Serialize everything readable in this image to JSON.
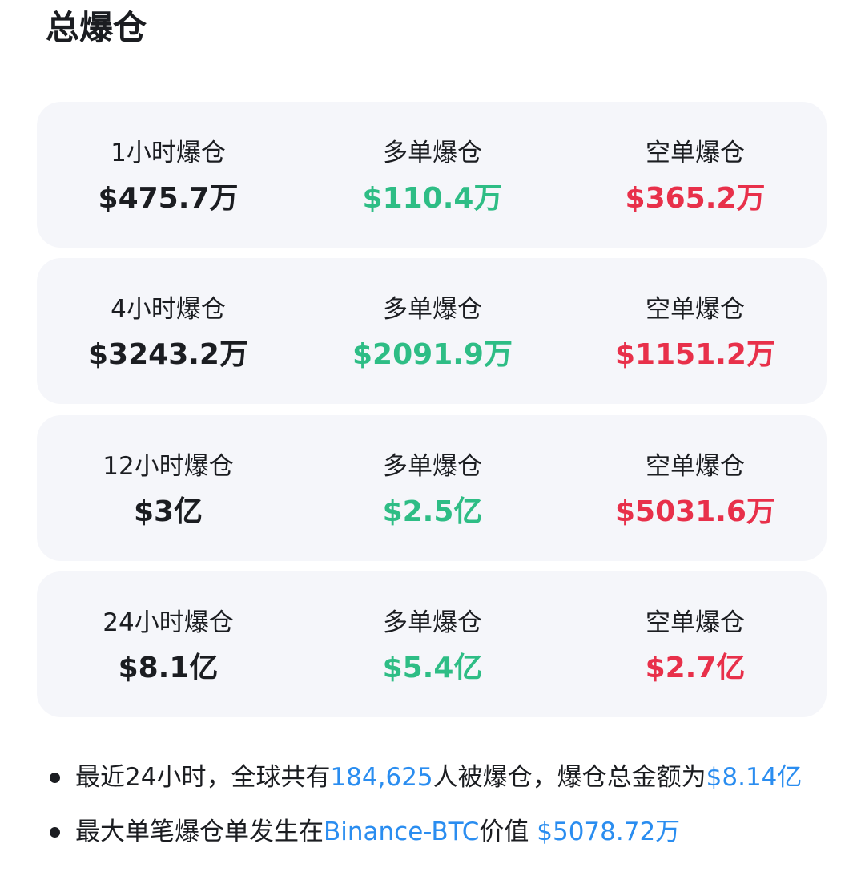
{
  "title": "总爆仓",
  "rows": [
    {
      "period_label": "1小时爆仓",
      "total": "$475.7万",
      "long_label": "多单爆仓",
      "long": "$110.4万",
      "short_label": "空单爆仓",
      "short": "$365.2万"
    },
    {
      "period_label": "4小时爆仓",
      "total": "$3243.2万",
      "long_label": "多单爆仓",
      "long": "$2091.9万",
      "short_label": "空单爆仓",
      "short": "$1151.2万"
    },
    {
      "period_label": "12小时爆仓",
      "total": "$3亿",
      "long_label": "多单爆仓",
      "long": "$2.5亿",
      "short_label": "空单爆仓",
      "short": "$5031.6万"
    },
    {
      "period_label": "24小时爆仓",
      "total": "$8.1亿",
      "long_label": "多单爆仓",
      "long": "$5.4亿",
      "short_label": "空单爆仓",
      "short": "$2.7亿"
    }
  ],
  "notes": {
    "line1": {
      "pre": "最近24小时，全球共有",
      "count": "184,625",
      "mid": "人被爆仓，爆仓总金额为",
      "amount": "$8.14亿"
    },
    "line2": {
      "pre": "最大单笔爆仓单发生在",
      "exchange": "Binance-BTC",
      "mid": "价值 ",
      "amount": "$5078.72万"
    }
  },
  "colors": {
    "long": "#2ebd85",
    "short": "#e8304a",
    "highlight": "#2a8df0",
    "card_bg": "#f5f6fa"
  }
}
